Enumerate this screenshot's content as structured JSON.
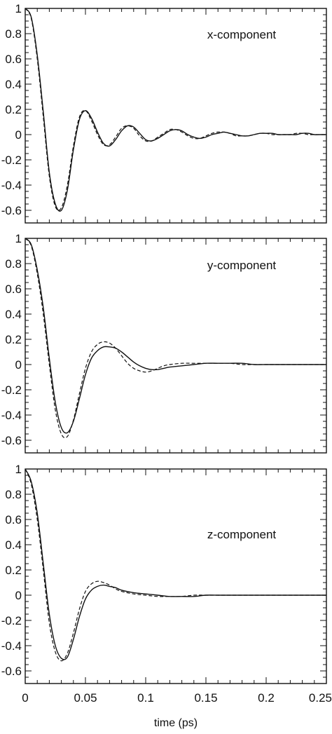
{
  "chart_data": [
    {
      "type": "line",
      "panel_label": "x-component",
      "xlabel": "",
      "ylabel": "",
      "xlim": [
        0,
        0.25
      ],
      "ylim": [
        -0.7,
        1.0
      ],
      "y_ticks": [
        "1",
        "0.8",
        "0.6",
        "0.4",
        "0.2",
        "0",
        "-0.2",
        "-0.4",
        "-0.6"
      ],
      "y_tick_values": [
        1,
        0.8,
        0.6,
        0.4,
        0.2,
        0,
        -0.2,
        -0.4,
        -0.6
      ],
      "x_ticks": [],
      "x_tick_values": [
        0,
        0.05,
        0.1,
        0.15,
        0.2,
        0.25
      ],
      "grid": false,
      "series": [
        {
          "style": "solid",
          "x": [
            0,
            0.005,
            0.01,
            0.015,
            0.02,
            0.025,
            0.03,
            0.035,
            0.04,
            0.045,
            0.05,
            0.055,
            0.06,
            0.065,
            0.07,
            0.075,
            0.08,
            0.085,
            0.09,
            0.095,
            0.1,
            0.105,
            0.11,
            0.115,
            0.12,
            0.125,
            0.13,
            0.135,
            0.14,
            0.145,
            0.15,
            0.155,
            0.16,
            0.165,
            0.17,
            0.175,
            0.18,
            0.185,
            0.19,
            0.195,
            0.2,
            0.205,
            0.21,
            0.215,
            0.22,
            0.225,
            0.23,
            0.235,
            0.24,
            0.245,
            0.25
          ],
          "y": [
            1.0,
            0.93,
            0.63,
            0.18,
            -0.3,
            -0.55,
            -0.6,
            -0.44,
            -0.12,
            0.12,
            0.19,
            0.13,
            0.02,
            -0.07,
            -0.09,
            -0.04,
            0.03,
            0.07,
            0.06,
            0.01,
            -0.04,
            -0.05,
            -0.03,
            0.0,
            0.03,
            0.04,
            0.03,
            0.0,
            -0.02,
            -0.03,
            -0.02,
            0.0,
            0.01,
            0.02,
            0.01,
            0.0,
            -0.01,
            -0.01,
            0.0,
            0.01,
            0.01,
            0.01,
            0.0,
            0.0,
            0.0,
            0.0,
            0.01,
            0.01,
            0.0,
            0.0,
            0.0
          ]
        },
        {
          "style": "dashed",
          "x": [
            0,
            0.005,
            0.01,
            0.015,
            0.02,
            0.025,
            0.03,
            0.035,
            0.04,
            0.045,
            0.05,
            0.055,
            0.06,
            0.065,
            0.07,
            0.075,
            0.08,
            0.085,
            0.09,
            0.095,
            0.1,
            0.105,
            0.11,
            0.115,
            0.12,
            0.125,
            0.13,
            0.135,
            0.14,
            0.145,
            0.15,
            0.155,
            0.16,
            0.165,
            0.17,
            0.175,
            0.18,
            0.185,
            0.19,
            0.195,
            0.2,
            0.205,
            0.21,
            0.215,
            0.22,
            0.225,
            0.23,
            0.235,
            0.24,
            0.245,
            0.25
          ],
          "y": [
            1.0,
            0.92,
            0.6,
            0.14,
            -0.33,
            -0.57,
            -0.58,
            -0.4,
            -0.09,
            0.14,
            0.19,
            0.11,
            0.0,
            -0.08,
            -0.08,
            -0.02,
            0.05,
            0.07,
            0.05,
            -0.01,
            -0.05,
            -0.05,
            -0.02,
            0.01,
            0.04,
            0.04,
            0.02,
            -0.01,
            -0.03,
            -0.03,
            -0.01,
            0.01,
            0.02,
            0.02,
            0.01,
            -0.01,
            -0.01,
            -0.01,
            0.0,
            0.01,
            0.01,
            0.0,
            0.0,
            0.0,
            0.0,
            0.01,
            0.01,
            0.0,
            0.0,
            0.0,
            0.0
          ]
        }
      ]
    },
    {
      "type": "line",
      "panel_label": "y-component",
      "xlabel": "",
      "ylabel": "",
      "xlim": [
        0,
        0.25
      ],
      "ylim": [
        -0.7,
        1.0
      ],
      "y_ticks": [
        "1",
        "0.8",
        "0.6",
        "0.4",
        "0.2",
        "0",
        "-0.2",
        "-0.4",
        "-0.6"
      ],
      "y_tick_values": [
        1,
        0.8,
        0.6,
        0.4,
        0.2,
        0,
        -0.2,
        -0.4,
        -0.6
      ],
      "x_ticks": [],
      "x_tick_values": [
        0,
        0.05,
        0.1,
        0.15,
        0.2,
        0.25
      ],
      "grid": false,
      "series": [
        {
          "style": "solid",
          "x": [
            0,
            0.005,
            0.01,
            0.015,
            0.02,
            0.025,
            0.03,
            0.035,
            0.04,
            0.045,
            0.05,
            0.055,
            0.06,
            0.065,
            0.07,
            0.075,
            0.08,
            0.085,
            0.09,
            0.095,
            0.1,
            0.105,
            0.11,
            0.115,
            0.12,
            0.13,
            0.14,
            0.15,
            0.16,
            0.17,
            0.18,
            0.19,
            0.2,
            0.21,
            0.22,
            0.23,
            0.24,
            0.25
          ],
          "y": [
            1.0,
            0.95,
            0.75,
            0.45,
            0.05,
            -0.3,
            -0.5,
            -0.54,
            -0.45,
            -0.27,
            -0.08,
            0.05,
            0.11,
            0.14,
            0.14,
            0.13,
            0.1,
            0.06,
            0.02,
            -0.01,
            -0.03,
            -0.04,
            -0.04,
            -0.03,
            -0.02,
            -0.01,
            0.0,
            0.01,
            0.01,
            0.01,
            0.01,
            0.0,
            0.0,
            0.0,
            0.0,
            0.0,
            0.0,
            0.0
          ]
        },
        {
          "style": "dashed",
          "x": [
            0,
            0.005,
            0.01,
            0.015,
            0.02,
            0.025,
            0.03,
            0.035,
            0.04,
            0.045,
            0.05,
            0.055,
            0.06,
            0.065,
            0.07,
            0.075,
            0.08,
            0.085,
            0.09,
            0.095,
            0.1,
            0.105,
            0.11,
            0.115,
            0.12,
            0.13,
            0.14,
            0.15,
            0.16,
            0.17,
            0.18,
            0.19,
            0.2,
            0.21,
            0.22,
            0.23,
            0.24,
            0.25
          ],
          "y": [
            1.0,
            0.94,
            0.72,
            0.4,
            0.0,
            -0.36,
            -0.55,
            -0.57,
            -0.44,
            -0.23,
            -0.03,
            0.1,
            0.16,
            0.18,
            0.17,
            0.13,
            0.07,
            0.01,
            -0.03,
            -0.05,
            -0.06,
            -0.05,
            -0.03,
            -0.01,
            0.0,
            0.01,
            0.01,
            0.01,
            0.01,
            0.01,
            0.0,
            0.0,
            0.0,
            0.0,
            0.0,
            0.0,
            0.0,
            0.0
          ]
        }
      ]
    },
    {
      "type": "line",
      "panel_label": "z-component",
      "xlabel": "time (ps)",
      "ylabel": "",
      "xlim": [
        0,
        0.25
      ],
      "ylim": [
        -0.7,
        1.0
      ],
      "y_ticks": [
        "1",
        "0.8",
        "0.6",
        "0.4",
        "0.2",
        "0",
        "-0.2",
        "-0.4",
        "-0.6"
      ],
      "y_tick_values": [
        1,
        0.8,
        0.6,
        0.4,
        0.2,
        0,
        -0.2,
        -0.4,
        -0.6
      ],
      "x_ticks": [
        "0",
        "0.05",
        "0.1",
        "0.15",
        "0.2",
        "0.25"
      ],
      "x_tick_values": [
        0,
        0.05,
        0.1,
        0.15,
        0.2,
        0.25
      ],
      "grid": false,
      "series": [
        {
          "style": "solid",
          "x": [
            0,
            0.005,
            0.01,
            0.015,
            0.02,
            0.025,
            0.03,
            0.035,
            0.04,
            0.045,
            0.05,
            0.055,
            0.06,
            0.065,
            0.07,
            0.075,
            0.08,
            0.09,
            0.1,
            0.11,
            0.12,
            0.13,
            0.14,
            0.15,
            0.16,
            0.17,
            0.18,
            0.19,
            0.2,
            0.21,
            0.22,
            0.23,
            0.24,
            0.25
          ],
          "y": [
            1.0,
            0.9,
            0.65,
            0.25,
            -0.15,
            -0.4,
            -0.5,
            -0.49,
            -0.35,
            -0.17,
            -0.03,
            0.04,
            0.07,
            0.08,
            0.07,
            0.06,
            0.04,
            0.02,
            0.01,
            0.0,
            -0.01,
            -0.01,
            -0.01,
            0.0,
            0.0,
            0.0,
            0.0,
            0.0,
            0.0,
            0.0,
            0.0,
            0.0,
            0.0,
            0.0
          ]
        },
        {
          "style": "dashed",
          "x": [
            0,
            0.005,
            0.01,
            0.015,
            0.02,
            0.025,
            0.03,
            0.035,
            0.04,
            0.045,
            0.05,
            0.055,
            0.06,
            0.065,
            0.07,
            0.075,
            0.08,
            0.09,
            0.1,
            0.11,
            0.12,
            0.13,
            0.14,
            0.15,
            0.16,
            0.17,
            0.18,
            0.19,
            0.2,
            0.21,
            0.22,
            0.23,
            0.24,
            0.25
          ],
          "y": [
            1.0,
            0.88,
            0.6,
            0.2,
            -0.22,
            -0.45,
            -0.52,
            -0.46,
            -0.3,
            -0.11,
            0.03,
            0.09,
            0.11,
            0.1,
            0.08,
            0.05,
            0.03,
            0.01,
            0.0,
            -0.01,
            -0.01,
            -0.01,
            0.0,
            0.0,
            0.0,
            0.0,
            0.0,
            0.0,
            0.0,
            0.0,
            0.0,
            0.0,
            0.0,
            0.0
          ]
        }
      ]
    }
  ]
}
